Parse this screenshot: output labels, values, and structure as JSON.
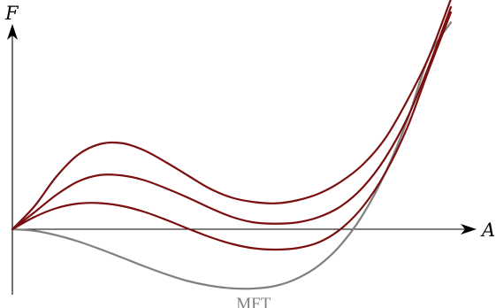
{
  "chart_data": {
    "type": "line",
    "title": "",
    "xlabel": "A",
    "ylabel": "F",
    "xlim": [
      0,
      10
    ],
    "ylim": [
      -3.3,
      10.6
    ],
    "grid": false,
    "legend": "none",
    "x": [
      0,
      0.5,
      1,
      1.5,
      2,
      2.5,
      3,
      3.5,
      4,
      4.5,
      5,
      5.5,
      6,
      6.5,
      7,
      7.5,
      8,
      8.5,
      9,
      9.5,
      10
    ],
    "series": [
      {
        "name": "MFT",
        "color": "#808080",
        "values": [
          0.0,
          -0.07,
          -0.27,
          -0.55,
          -0.9,
          -1.28,
          -1.67,
          -2.03,
          -2.34,
          -2.55,
          -2.67,
          -2.68,
          -2.56,
          -2.22,
          -1.62,
          -0.68,
          0.68,
          2.53,
          4.9,
          7.8,
          9.35
        ]
      },
      {
        "color": "#7b0e0e",
        "values": [
          0.0,
          0.55,
          0.95,
          1.16,
          1.18,
          1.05,
          0.79,
          0.43,
          0.03,
          -0.35,
          -0.66,
          -0.86,
          -0.92,
          -0.85,
          -0.58,
          0.03,
          1.04,
          2.53,
          4.57,
          7.23,
          9.8
        ]
      },
      {
        "color": "#7b0e0e",
        "values": [
          0.0,
          0.76,
          1.55,
          2.16,
          2.45,
          2.43,
          2.22,
          1.85,
          1.43,
          0.97,
          0.56,
          0.31,
          0.25,
          0.31,
          0.56,
          1.05,
          1.91,
          3.21,
          5.0,
          7.38,
          10.04
        ]
      },
      {
        "color": "#7b0e0e",
        "values": [
          0.0,
          1.03,
          2.37,
          3.37,
          3.85,
          3.89,
          3.57,
          3.03,
          2.43,
          1.84,
          1.43,
          1.23,
          1.17,
          1.31,
          1.62,
          2.16,
          2.94,
          4.1,
          5.8,
          7.8,
          10.4
        ]
      }
    ]
  }
}
